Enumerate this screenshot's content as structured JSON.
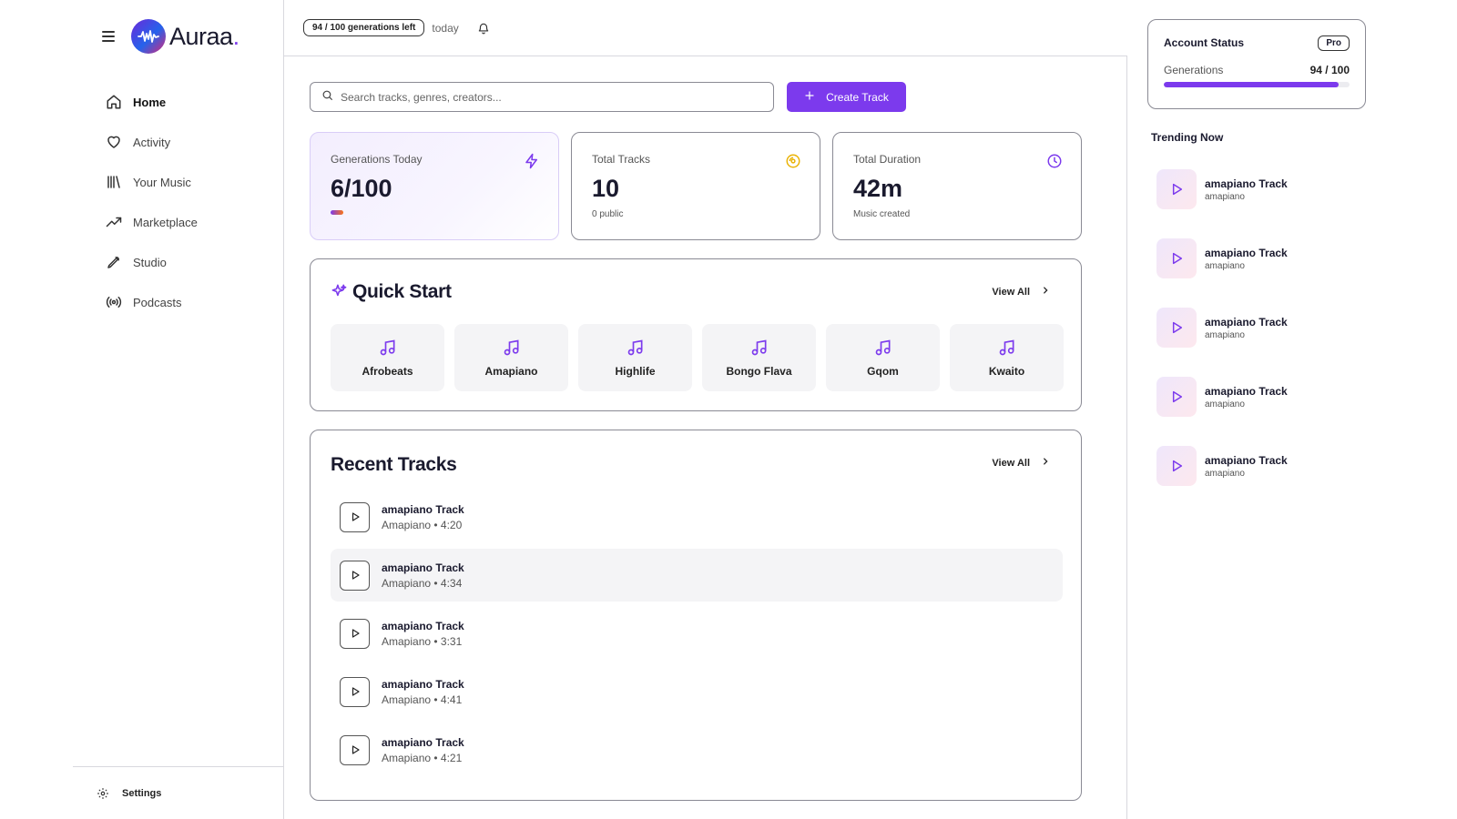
{
  "app": {
    "name": "Auraa",
    "name_dot": "."
  },
  "sidebar": {
    "items": [
      {
        "label": "Home",
        "icon": "home-icon",
        "active": true
      },
      {
        "label": "Activity",
        "icon": "heart-icon"
      },
      {
        "label": "Your Music",
        "icon": "library-icon"
      },
      {
        "label": "Marketplace",
        "icon": "trending-icon"
      },
      {
        "label": "Studio",
        "icon": "pen-icon"
      },
      {
        "label": "Podcasts",
        "icon": "broadcast-icon"
      }
    ],
    "settings_label": "Settings"
  },
  "topbar": {
    "badge": "94 / 100 generations left",
    "today": "today"
  },
  "search": {
    "placeholder": "Search tracks, genres, creators..."
  },
  "create_button": {
    "label": "Create Track"
  },
  "stats": [
    {
      "label": "Generations Today",
      "value": "6/100",
      "icon": "bolt-icon",
      "progress": 0.06
    },
    {
      "label": "Total Tracks",
      "value": "10",
      "sub": "0 public",
      "icon": "disc-icon"
    },
    {
      "label": "Total Duration",
      "value": "42m",
      "sub": "Music created",
      "icon": "clock-icon"
    }
  ],
  "quick_start": {
    "title": "Quick Start",
    "view_all": "View All",
    "genres": [
      "Afrobeats",
      "Amapiano",
      "Highlife",
      "Bongo Flava",
      "Gqom",
      "Kwaito"
    ]
  },
  "recent_tracks": {
    "title": "Recent Tracks",
    "view_all": "View All",
    "tracks": [
      {
        "title": "amapiano Track",
        "meta": "Amapiano • 4:20"
      },
      {
        "title": "amapiano Track",
        "meta": "Amapiano • 4:34"
      },
      {
        "title": "amapiano Track",
        "meta": "Amapiano • 3:31"
      },
      {
        "title": "amapiano Track",
        "meta": "Amapiano • 4:41"
      },
      {
        "title": "amapiano Track",
        "meta": "Amapiano • 4:21"
      }
    ]
  },
  "account": {
    "title": "Account Status",
    "plan": "Pro",
    "generations_label": "Generations",
    "generations_value": "94 / 100",
    "generations_fraction": 0.94
  },
  "trending": {
    "title": "Trending Now",
    "items": [
      {
        "title": "amapiano Track",
        "sub": "amapiano"
      },
      {
        "title": "amapiano Track",
        "sub": "amapiano"
      },
      {
        "title": "amapiano Track",
        "sub": "amapiano"
      },
      {
        "title": "amapiano Track",
        "sub": "amapiano"
      },
      {
        "title": "amapiano Track",
        "sub": "amapiano"
      }
    ]
  },
  "colors": {
    "accent": "#7c3aed",
    "border": "#8a8a94",
    "text": "#1a1a2e"
  }
}
